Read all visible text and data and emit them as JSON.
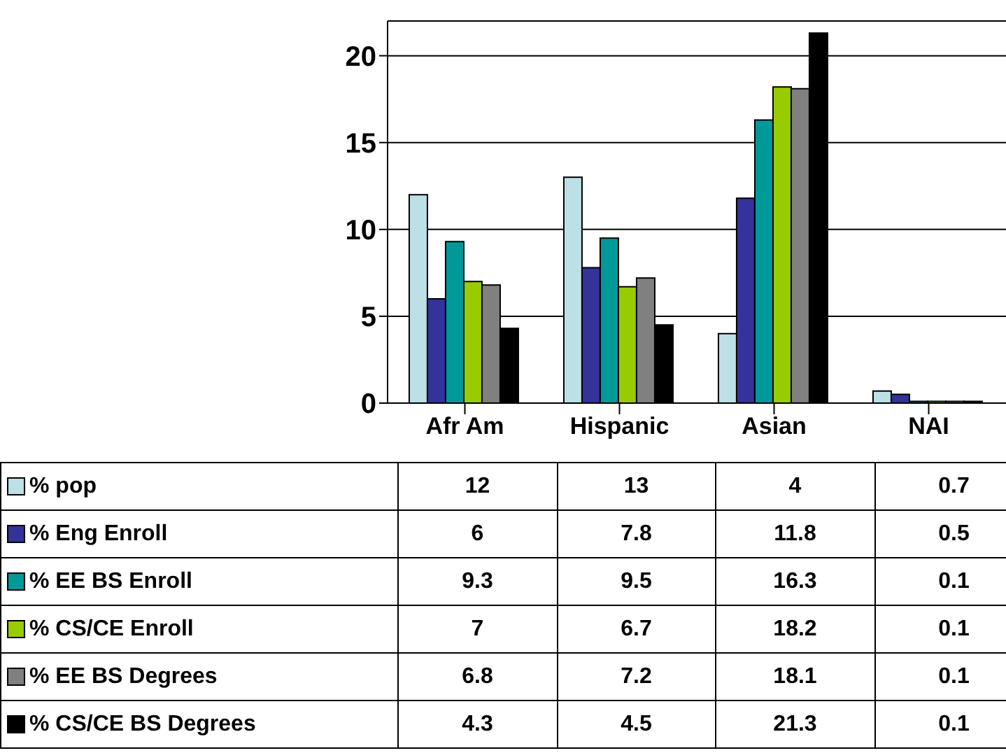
{
  "chart_data": {
    "type": "bar",
    "categories": [
      "Afr Am",
      "Hispanic",
      "Asian",
      "NAI"
    ],
    "series": [
      {
        "name": "% pop",
        "color": "#bce0e6",
        "values": [
          12,
          13,
          4,
          0.7
        ]
      },
      {
        "name": "% Eng Enroll",
        "color": "#333399",
        "values": [
          6,
          7.8,
          11.8,
          0.5
        ]
      },
      {
        "name": "% EE BS Enroll",
        "color": "#009999",
        "values": [
          9.3,
          9.5,
          16.3,
          0.1
        ]
      },
      {
        "name": "% CS/CE Enroll",
        "color": "#99cc00",
        "values": [
          7,
          6.7,
          18.2,
          0.1
        ]
      },
      {
        "name": "% EE BS Degrees",
        "color": "#808080",
        "values": [
          6.8,
          7.2,
          18.1,
          0.1
        ]
      },
      {
        "name": "% CS/CE BS Degrees",
        "color": "#000000",
        "values": [
          4.3,
          4.5,
          21.3,
          0.1
        ]
      }
    ],
    "ylim": [
      0,
      22
    ],
    "yticks": [
      0,
      5,
      10,
      15,
      20
    ],
    "grid": "y",
    "legend": "bottom left",
    "data_labels": true
  }
}
